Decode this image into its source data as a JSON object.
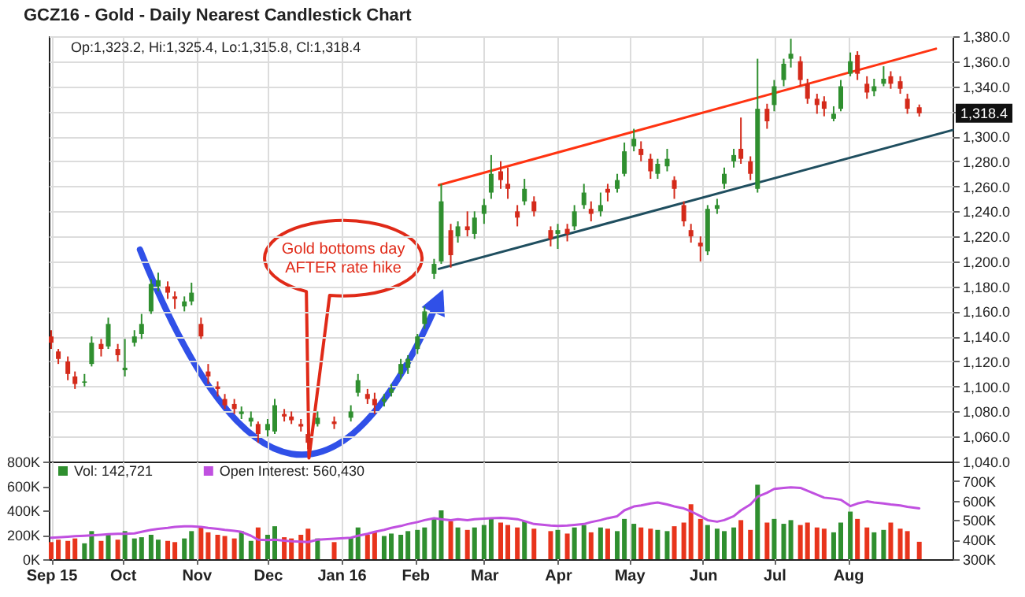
{
  "chart_data": [
    {
      "type": "candlestick",
      "title": "GCZ16 - Gold - Daily Nearest Candlestick Chart",
      "annotations": [
        "Op:1,323.2, Hi:1,325.4, Lo:1,315.8, Cl:1,318.4",
        "1,318.4",
        "Gold bottoms day AFTER rate hike"
      ],
      "x": [
        "2015-09-01",
        "2015-09-04",
        "2015-09-08",
        "2015-09-11",
        "2015-09-15",
        "2015-09-18",
        "2015-09-22",
        "2015-09-25",
        "2015-09-29",
        "2015-10-02",
        "2015-10-06",
        "2015-10-09",
        "2015-10-13",
        "2015-10-16",
        "2015-10-20",
        "2015-10-23",
        "2015-10-27",
        "2015-10-30",
        "2015-11-03",
        "2015-11-06",
        "2015-11-10",
        "2015-11-13",
        "2015-11-17",
        "2015-11-20",
        "2015-11-24",
        "2015-11-27",
        "2015-12-01",
        "2015-12-04",
        "2015-12-08",
        "2015-12-11",
        "2015-12-15",
        "2015-12-18",
        "2015-12-22",
        "2015-12-29",
        "2016-01-05",
        "2016-01-08",
        "2016-01-12",
        "2016-01-15",
        "2016-01-19",
        "2016-01-22",
        "2016-01-26",
        "2016-01-29",
        "2016-02-02",
        "2016-02-05",
        "2016-02-09",
        "2016-02-12",
        "2016-02-16",
        "2016-02-19",
        "2016-02-23",
        "2016-02-26",
        "2016-03-01",
        "2016-03-04",
        "2016-03-08",
        "2016-03-11",
        "2016-03-15",
        "2016-03-18",
        "2016-03-22",
        "2016-03-29",
        "2016-04-01",
        "2016-04-05",
        "2016-04-08",
        "2016-04-12",
        "2016-04-15",
        "2016-04-19",
        "2016-04-22",
        "2016-04-26",
        "2016-04-29",
        "2016-05-03",
        "2016-05-06",
        "2016-05-10",
        "2016-05-13",
        "2016-05-17",
        "2016-05-20",
        "2016-05-24",
        "2016-05-27",
        "2016-05-31",
        "2016-06-03",
        "2016-06-07",
        "2016-06-10",
        "2016-06-14",
        "2016-06-17",
        "2016-06-21",
        "2016-06-24",
        "2016-06-28",
        "2016-07-01",
        "2016-07-05",
        "2016-07-08",
        "2016-07-12",
        "2016-07-15",
        "2016-07-19",
        "2016-07-22",
        "2016-07-26",
        "2016-07-29",
        "2016-08-02",
        "2016-08-05",
        "2016-08-09",
        "2016-08-12",
        "2016-08-16",
        "2016-08-19",
        "2016-08-23",
        "2016-08-26",
        "2016-08-31"
      ],
      "ohlc": [
        [
          1140,
          1145,
          1130,
          1135
        ],
        [
          1128,
          1130,
          1118,
          1122
        ],
        [
          1120,
          1124,
          1105,
          1110
        ],
        [
          1108,
          1112,
          1098,
          1102
        ],
        [
          1103,
          1110,
          1100,
          1104
        ],
        [
          1118,
          1140,
          1116,
          1135
        ],
        [
          1134,
          1138,
          1124,
          1130
        ],
        [
          1132,
          1155,
          1130,
          1150
        ],
        [
          1130,
          1134,
          1120,
          1125
        ],
        [
          1113,
          1138,
          1108,
          1115
        ],
        [
          1135,
          1145,
          1132,
          1140
        ],
        [
          1142,
          1158,
          1138,
          1150
        ],
        [
          1160,
          1186,
          1158,
          1182
        ],
        [
          1180,
          1191,
          1176,
          1185
        ],
        [
          1180,
          1184,
          1170,
          1175
        ],
        [
          1172,
          1176,
          1162,
          1170
        ],
        [
          1164,
          1172,
          1160,
          1168
        ],
        [
          1168,
          1183,
          1165,
          1175
        ],
        [
          1150,
          1155,
          1138,
          1140
        ],
        [
          1112,
          1118,
          1102,
          1108
        ],
        [
          1100,
          1104,
          1092,
          1098
        ],
        [
          1090,
          1094,
          1082,
          1085
        ],
        [
          1086,
          1090,
          1078,
          1082
        ],
        [
          1078,
          1084,
          1074,
          1080
        ],
        [
          1072,
          1080,
          1068,
          1075
        ],
        [
          1070,
          1072,
          1055,
          1062
        ],
        [
          1065,
          1074,
          1060,
          1070
        ],
        [
          1064,
          1090,
          1062,
          1085
        ],
        [
          1078,
          1082,
          1072,
          1076
        ],
        [
          1076,
          1080,
          1070,
          1073
        ],
        [
          1070,
          1074,
          1064,
          1068
        ],
        [
          1062,
          1066,
          1050,
          1055
        ],
        [
          1070,
          1080,
          1068,
          1075
        ],
        [
          1072,
          1076,
          1066,
          1070
        ],
        [
          1075,
          1085,
          1072,
          1080
        ],
        [
          1095,
          1110,
          1092,
          1105
        ],
        [
          1094,
          1098,
          1086,
          1090
        ],
        [
          1090,
          1095,
          1078,
          1085
        ],
        [
          1088,
          1094,
          1084,
          1090
        ],
        [
          1095,
          1102,
          1092,
          1098
        ],
        [
          1110,
          1122,
          1106,
          1118
        ],
        [
          1115,
          1125,
          1110,
          1122
        ],
        [
          1130,
          1142,
          1126,
          1140
        ],
        [
          1150,
          1164,
          1146,
          1160
        ],
        [
          1190,
          1202,
          1186,
          1198
        ],
        [
          1200,
          1262,
          1198,
          1248
        ],
        [
          1225,
          1230,
          1195,
          1205
        ],
        [
          1220,
          1232,
          1215,
          1228
        ],
        [
          1228,
          1240,
          1220,
          1225
        ],
        [
          1222,
          1240,
          1218,
          1235
        ],
        [
          1238,
          1250,
          1230,
          1245
        ],
        [
          1255,
          1285,
          1250,
          1270
        ],
        [
          1272,
          1280,
          1258,
          1265
        ],
        [
          1262,
          1275,
          1250,
          1258
        ],
        [
          1240,
          1245,
          1228,
          1235
        ],
        [
          1248,
          1266,
          1245,
          1258
        ],
        [
          1248,
          1252,
          1236,
          1240
        ],
        [
          1225,
          1228,
          1212,
          1218
        ],
        [
          1222,
          1230,
          1210,
          1225
        ],
        [
          1226,
          1230,
          1216,
          1222
        ],
        [
          1228,
          1245,
          1225,
          1240
        ],
        [
          1245,
          1262,
          1242,
          1255
        ],
        [
          1242,
          1248,
          1232,
          1238
        ],
        [
          1240,
          1255,
          1236,
          1245
        ],
        [
          1258,
          1262,
          1248,
          1255
        ],
        [
          1258,
          1270,
          1255,
          1265
        ],
        [
          1270,
          1295,
          1268,
          1288
        ],
        [
          1292,
          1306,
          1288,
          1298
        ],
        [
          1290,
          1296,
          1280,
          1285
        ],
        [
          1282,
          1286,
          1266,
          1272
        ],
        [
          1270,
          1282,
          1266,
          1278
        ],
        [
          1276,
          1290,
          1272,
          1282
        ],
        [
          1265,
          1268,
          1250,
          1258
        ],
        [
          1245,
          1248,
          1228,
          1232
        ],
        [
          1225,
          1230,
          1215,
          1220
        ],
        [
          1215,
          1220,
          1200,
          1212
        ],
        [
          1208,
          1245,
          1205,
          1242
        ],
        [
          1242,
          1250,
          1238,
          1245
        ],
        [
          1262,
          1275,
          1258,
          1270
        ],
        [
          1280,
          1290,
          1275,
          1285
        ],
        [
          1290,
          1315,
          1278,
          1282
        ],
        [
          1280,
          1284,
          1265,
          1270
        ],
        [
          1258,
          1362,
          1255,
          1322
        ],
        [
          1322,
          1326,
          1306,
          1312
        ],
        [
          1325,
          1345,
          1320,
          1340
        ],
        [
          1345,
          1362,
          1340,
          1358
        ],
        [
          1362,
          1378,
          1355,
          1366
        ],
        [
          1360,
          1364,
          1340,
          1345
        ],
        [
          1342,
          1346,
          1326,
          1330
        ],
        [
          1330,
          1334,
          1318,
          1325
        ],
        [
          1328,
          1332,
          1316,
          1322
        ],
        [
          1314,
          1324,
          1312,
          1318
        ],
        [
          1322,
          1345,
          1320,
          1340
        ],
        [
          1350,
          1367,
          1348,
          1360
        ],
        [
          1365,
          1368,
          1345,
          1350
        ],
        [
          1342,
          1348,
          1330,
          1335
        ],
        [
          1336,
          1346,
          1332,
          1340
        ],
        [
          1342,
          1356,
          1340,
          1346
        ],
        [
          1348,
          1352,
          1338,
          1342
        ],
        [
          1344,
          1348,
          1334,
          1338
        ],
        [
          1330,
          1334,
          1318,
          1322
        ],
        [
          1323.2,
          1325.4,
          1315.8,
          1318.4
        ]
      ],
      "series": [
        {
          "type": "line",
          "color": "#ff3311",
          "x": [
            "2016-02-11",
            "2016-09-07"
          ],
          "values": [
            1261,
            1370
          ]
        },
        {
          "type": "line",
          "color": "#1f4e5f",
          "x": [
            "2016-02-11",
            "2016-09-14"
          ],
          "values": [
            1194,
            1305
          ]
        }
      ],
      "xlim": [
        "2015-08-31",
        "2016-09-14"
      ],
      "xticks": [
        {
          "value": "2015-09-01",
          "label": null
        },
        {
          "value": "2015-10-01",
          "label": null
        },
        {
          "value": "2015-11-01",
          "label": null
        },
        {
          "value": "2015-12-01",
          "label": null
        },
        {
          "value": "2016-01-01",
          "label": null
        },
        {
          "value": "2016-02-01",
          "label": null
        },
        {
          "value": "2016-03-01",
          "label": null
        },
        {
          "value": "2016-04-01",
          "label": null
        },
        {
          "value": "2016-05-01",
          "label": null
        },
        {
          "value": "2016-06-01",
          "label": null
        },
        {
          "value": "2016-07-01",
          "label": null
        },
        {
          "value": "2016-08-01",
          "label": null
        }
      ],
      "ylim": [
        1040,
        1380
      ],
      "yticks": [
        {
          "value": 1040,
          "label": "1,040.0"
        },
        {
          "value": 1060,
          "label": "1,060.0"
        },
        {
          "value": 1080,
          "label": "1,080.0"
        },
        {
          "value": 1100,
          "label": "1,100.0"
        },
        {
          "value": 1120,
          "label": "1,120.0"
        },
        {
          "value": 1140,
          "label": "1,140.0"
        },
        {
          "value": 1160,
          "label": "1,160.0"
        },
        {
          "value": 1180,
          "label": "1,180.0"
        },
        {
          "value": 1200,
          "label": "1,200.0"
        },
        {
          "value": 1220,
          "label": "1,220.0"
        },
        {
          "value": 1240,
          "label": "1,240.0"
        },
        {
          "value": 1260,
          "label": "1,260.0"
        },
        {
          "value": 1280,
          "label": "1,280.0"
        },
        {
          "value": 1300,
          "label": "1,300.0"
        },
        {
          "value": 1320,
          "label": null
        },
        {
          "value": 1340,
          "label": "1,340.0"
        },
        {
          "value": 1360,
          "label": "1,360.0"
        },
        {
          "value": 1380,
          "label": "1,380.0"
        }
      ],
      "grid": true,
      "tick_labels": "y"
    },
    {
      "type": "bar",
      "legend": "top left",
      "grid": "x",
      "x": [
        "2015-09-01",
        "2015-09-04",
        "2015-09-08",
        "2015-09-11",
        "2015-09-15",
        "2015-09-18",
        "2015-09-22",
        "2015-09-25",
        "2015-09-29",
        "2015-10-02",
        "2015-10-06",
        "2015-10-09",
        "2015-10-13",
        "2015-10-16",
        "2015-10-20",
        "2015-10-23",
        "2015-10-27",
        "2015-10-30",
        "2015-11-03",
        "2015-11-06",
        "2015-11-10",
        "2015-11-13",
        "2015-11-17",
        "2015-11-20",
        "2015-11-24",
        "2015-11-27",
        "2015-12-01",
        "2015-12-04",
        "2015-12-08",
        "2015-12-11",
        "2015-12-15",
        "2015-12-18",
        "2015-12-22",
        "2015-12-29",
        "2016-01-05",
        "2016-01-08",
        "2016-01-12",
        "2016-01-15",
        "2016-01-19",
        "2016-01-22",
        "2016-01-26",
        "2016-01-29",
        "2016-02-02",
        "2016-02-05",
        "2016-02-09",
        "2016-02-12",
        "2016-02-16",
        "2016-02-19",
        "2016-02-23",
        "2016-02-26",
        "2016-03-01",
        "2016-03-04",
        "2016-03-08",
        "2016-03-11",
        "2016-03-15",
        "2016-03-18",
        "2016-03-22",
        "2016-03-29",
        "2016-04-01",
        "2016-04-05",
        "2016-04-08",
        "2016-04-12",
        "2016-04-15",
        "2016-04-19",
        "2016-04-22",
        "2016-04-26",
        "2016-04-29",
        "2016-05-03",
        "2016-05-06",
        "2016-05-10",
        "2016-05-13",
        "2016-05-17",
        "2016-05-20",
        "2016-05-24",
        "2016-05-27",
        "2016-05-31",
        "2016-06-03",
        "2016-06-07",
        "2016-06-10",
        "2016-06-14",
        "2016-06-17",
        "2016-06-21",
        "2016-06-24",
        "2016-06-28",
        "2016-07-01",
        "2016-07-05",
        "2016-07-08",
        "2016-07-12",
        "2016-07-15",
        "2016-07-19",
        "2016-07-22",
        "2016-07-26",
        "2016-07-29",
        "2016-08-02",
        "2016-08-05",
        "2016-08-09",
        "2016-08-12",
        "2016-08-16",
        "2016-08-19",
        "2016-08-23",
        "2016-08-26",
        "2016-08-31"
      ],
      "series": [
        {
          "name": "Vol: 142,721",
          "type": "bar",
          "color": "#2f8f2f",
          "values": [
            140000,
            160000,
            150000,
            170000,
            130000,
            230000,
            150000,
            210000,
            160000,
            230000,
            170000,
            180000,
            200000,
            160000,
            150000,
            140000,
            170000,
            230000,
            260000,
            220000,
            200000,
            190000,
            170000,
            230000,
            150000,
            260000,
            200000,
            270000,
            180000,
            170000,
            200000,
            250000,
            170000,
            140000,
            180000,
            260000,
            200000,
            220000,
            190000,
            210000,
            200000,
            230000,
            240000,
            260000,
            330000,
            400000,
            310000,
            260000,
            240000,
            260000,
            280000,
            330000,
            300000,
            280000,
            260000,
            310000,
            250000,
            230000,
            240000,
            210000,
            260000,
            280000,
            220000,
            260000,
            250000,
            230000,
            330000,
            290000,
            260000,
            250000,
            240000,
            230000,
            270000,
            300000,
            450000,
            330000,
            280000,
            250000,
            230000,
            260000,
            320000,
            240000,
            610000,
            300000,
            330000,
            290000,
            320000,
            280000,
            300000,
            260000,
            250000,
            220000,
            300000,
            390000,
            330000,
            260000,
            220000,
            240000,
            300000,
            250000,
            230000,
            142721
          ],
          "colors": [
            "#e8341c",
            "#e8341c",
            "#e8341c",
            "#e8341c",
            "#2f8f2f",
            "#2f8f2f",
            "#e8341c",
            "#2f8f2f",
            "#e8341c",
            "#2f8f2f",
            "#2f8f2f",
            "#2f8f2f",
            "#2f8f2f",
            "#2f8f2f",
            "#e8341c",
            "#e8341c",
            "#2f8f2f",
            "#2f8f2f",
            "#e8341c",
            "#e8341c",
            "#e8341c",
            "#e8341c",
            "#e8341c",
            "#2f8f2f",
            "#2f8f2f",
            "#e8341c",
            "#2f8f2f",
            "#2f8f2f",
            "#e8341c",
            "#e8341c",
            "#e8341c",
            "#e8341c",
            "#2f8f2f",
            "#e8341c",
            "#2f8f2f",
            "#2f8f2f",
            "#e8341c",
            "#e8341c",
            "#2f8f2f",
            "#2f8f2f",
            "#2f8f2f",
            "#2f8f2f",
            "#2f8f2f",
            "#2f8f2f",
            "#2f8f2f",
            "#2f8f2f",
            "#e8341c",
            "#2f8f2f",
            "#e8341c",
            "#2f8f2f",
            "#2f8f2f",
            "#2f8f2f",
            "#e8341c",
            "#e8341c",
            "#e8341c",
            "#2f8f2f",
            "#e8341c",
            "#e8341c",
            "#2f8f2f",
            "#e8341c",
            "#2f8f2f",
            "#2f8f2f",
            "#e8341c",
            "#2f8f2f",
            "#e8341c",
            "#2f8f2f",
            "#2f8f2f",
            "#2f8f2f",
            "#e8341c",
            "#e8341c",
            "#2f8f2f",
            "#2f8f2f",
            "#e8341c",
            "#e8341c",
            "#e8341c",
            "#e8341c",
            "#2f8f2f",
            "#2f8f2f",
            "#2f8f2f",
            "#2f8f2f",
            "#e8341c",
            "#e8341c",
            "#2f8f2f",
            "#e8341c",
            "#2f8f2f",
            "#2f8f2f",
            "#2f8f2f",
            "#e8341c",
            "#e8341c",
            "#e8341c",
            "#e8341c",
            "#2f8f2f",
            "#2f8f2f",
            "#2f8f2f",
            "#e8341c",
            "#e8341c",
            "#2f8f2f",
            "#2f8f2f",
            "#e8341c",
            "#e8341c",
            "#e8341c",
            "#e8341c"
          ]
        },
        {
          "name": "Open Interest: 560,430",
          "type": "line",
          "axis": "y2",
          "color": "#c050e0",
          "values": [
            410000,
            412000,
            415000,
            418000,
            420000,
            422000,
            425000,
            428000,
            430000,
            430000,
            432000,
            440000,
            450000,
            455000,
            460000,
            465000,
            468000,
            468000,
            465000,
            460000,
            455000,
            450000,
            445000,
            440000,
            420000,
            400000,
            398000,
            400000,
            395000,
            392000,
            390000,
            388000,
            400000,
            405000,
            410000,
            420000,
            430000,
            440000,
            450000,
            460000,
            470000,
            480000,
            490000,
            500000,
            510000,
            505000,
            500000,
            505000,
            500000,
            505000,
            508000,
            510000,
            512000,
            510000,
            505000,
            495000,
            480000,
            472000,
            470000,
            472000,
            475000,
            480000,
            490000,
            500000,
            510000,
            520000,
            550000,
            570000,
            575000,
            585000,
            590000,
            580000,
            570000,
            560000,
            545000,
            520000,
            500000,
            492000,
            500000,
            520000,
            550000,
            580000,
            620000,
            640000,
            660000,
            665000,
            668000,
            665000,
            650000,
            630000,
            615000,
            610000,
            604000,
            572000,
            585000,
            596000,
            590000,
            585000,
            580000,
            575000,
            568000,
            560430
          ]
        }
      ],
      "xlim": [
        "2015-08-31",
        "2016-09-14"
      ],
      "xticks": [
        {
          "value": "2015-09-01",
          "label": "Sep 15"
        },
        {
          "value": "2015-10-01",
          "label": "Oct"
        },
        {
          "value": "2015-11-01",
          "label": "Nov"
        },
        {
          "value": "2015-12-01",
          "label": "Dec"
        },
        {
          "value": "2016-01-01",
          "label": "Jan 16"
        },
        {
          "value": "2016-02-01",
          "label": "Feb"
        },
        {
          "value": "2016-03-01",
          "label": "Mar"
        },
        {
          "value": "2016-04-01",
          "label": "Apr"
        },
        {
          "value": "2016-05-01",
          "label": "May"
        },
        {
          "value": "2016-06-01",
          "label": "Jun"
        },
        {
          "value": "2016-07-01",
          "label": "Jul"
        },
        {
          "value": "2016-08-01",
          "label": "Aug"
        }
      ],
      "ylim": [
        0,
        800000
      ],
      "yticks": [
        {
          "value": 0,
          "label": "0K"
        },
        {
          "value": 200000,
          "label": "200K"
        },
        {
          "value": 400000,
          "label": "400K"
        },
        {
          "value": 600000,
          "label": "600K"
        },
        {
          "value": 800000,
          "label": "800K"
        }
      ],
      "y2lim": [
        300000,
        800000
      ],
      "y2ticks": [
        {
          "value": 300000,
          "label": "300K"
        },
        {
          "value": 400000,
          "label": "400K"
        },
        {
          "value": 500000,
          "label": "500K"
        },
        {
          "value": 600000,
          "label": "600K"
        },
        {
          "value": 700000,
          "label": "700K"
        }
      ]
    }
  ]
}
